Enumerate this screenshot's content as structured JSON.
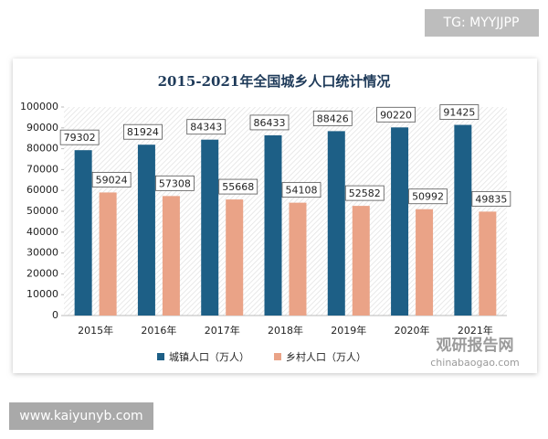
{
  "chart_data": {
    "type": "bar",
    "title": "2015-2021年全国城乡人口统计情况",
    "categories": [
      "2015年",
      "2016年",
      "2017年",
      "2018年",
      "2019年",
      "2020年",
      "2021年"
    ],
    "series": [
      {
        "name": "城镇人口（万人）",
        "color": "#1d5f86",
        "values": [
          79302,
          81924,
          84343,
          86433,
          88426,
          90220,
          91425
        ]
      },
      {
        "name": "乡村人口（万人）",
        "color": "#eaa387",
        "values": [
          59024,
          57308,
          55668,
          54108,
          52582,
          50992,
          49835
        ]
      }
    ],
    "ylim": [
      0,
      100000
    ],
    "yticks": [
      0,
      10000,
      20000,
      30000,
      40000,
      50000,
      60000,
      70000,
      80000,
      90000,
      100000
    ],
    "legend": "bottom"
  },
  "watermarks": [
    "TG: MYYJJPP",
    "www.kaiyunyb.com",
    "观研报告网",
    "chinabaogao.com"
  ]
}
